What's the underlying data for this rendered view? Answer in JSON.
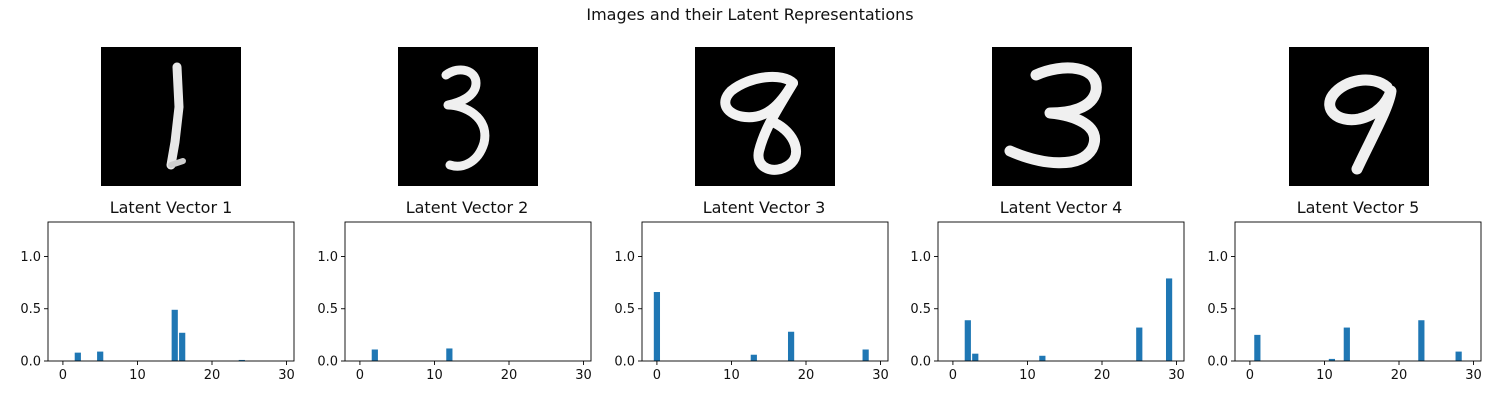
{
  "title": "Images and their Latent Representations",
  "samples": [
    {
      "digit_icon": "digit-1-image"
    },
    {
      "digit_icon": "digit-3-image"
    },
    {
      "digit_icon": "digit-8-image"
    },
    {
      "digit_icon": "digit-3-image"
    },
    {
      "digit_icon": "digit-9-image"
    }
  ],
  "chart_data": [
    {
      "type": "bar",
      "title": "Latent Vector 1",
      "xlim": [
        -2,
        31
      ],
      "ylim": [
        0,
        1.33
      ],
      "xticks": [
        0,
        10,
        20,
        30
      ],
      "yticks": [
        0.0,
        0.5,
        1.0
      ],
      "bar_color": "#1f77b4",
      "bars": [
        {
          "x": 2,
          "y": 0.08
        },
        {
          "x": 5,
          "y": 0.09
        },
        {
          "x": 15,
          "y": 0.49
        },
        {
          "x": 16,
          "y": 0.27
        },
        {
          "x": 24,
          "y": 0.01
        }
      ]
    },
    {
      "type": "bar",
      "title": "Latent Vector 2",
      "xlim": [
        -2,
        31
      ],
      "ylim": [
        0,
        1.33
      ],
      "xticks": [
        0,
        10,
        20,
        30
      ],
      "yticks": [
        0.0,
        0.5,
        1.0
      ],
      "bar_color": "#1f77b4",
      "bars": [
        {
          "x": 2,
          "y": 0.11
        },
        {
          "x": 12,
          "y": 0.12
        }
      ]
    },
    {
      "type": "bar",
      "title": "Latent Vector 3",
      "xlim": [
        -2,
        31
      ],
      "ylim": [
        0,
        1.33
      ],
      "xticks": [
        0,
        10,
        20,
        30
      ],
      "yticks": [
        0.0,
        0.5,
        1.0
      ],
      "bar_color": "#1f77b4",
      "bars": [
        {
          "x": 0,
          "y": 0.66
        },
        {
          "x": 13,
          "y": 0.06
        },
        {
          "x": 18,
          "y": 0.28
        },
        {
          "x": 28,
          "y": 0.11
        }
      ]
    },
    {
      "type": "bar",
      "title": "Latent Vector 4",
      "xlim": [
        -2,
        31
      ],
      "ylim": [
        0,
        1.33
      ],
      "xticks": [
        0,
        10,
        20,
        30
      ],
      "yticks": [
        0.0,
        0.5,
        1.0
      ],
      "bar_color": "#1f77b4",
      "bars": [
        {
          "x": 2,
          "y": 0.39
        },
        {
          "x": 3,
          "y": 0.07
        },
        {
          "x": 12,
          "y": 0.05
        },
        {
          "x": 25,
          "y": 0.32
        },
        {
          "x": 29,
          "y": 0.79
        }
      ]
    },
    {
      "type": "bar",
      "title": "Latent Vector 5",
      "xlim": [
        -2,
        31
      ],
      "ylim": [
        0,
        1.33
      ],
      "xticks": [
        0,
        10,
        20,
        30
      ],
      "yticks": [
        0.0,
        0.5,
        1.0
      ],
      "bar_color": "#1f77b4",
      "bars": [
        {
          "x": 1,
          "y": 0.25
        },
        {
          "x": 11,
          "y": 0.02
        },
        {
          "x": 13,
          "y": 0.32
        },
        {
          "x": 23,
          "y": 0.39
        },
        {
          "x": 28,
          "y": 0.09
        }
      ]
    }
  ]
}
